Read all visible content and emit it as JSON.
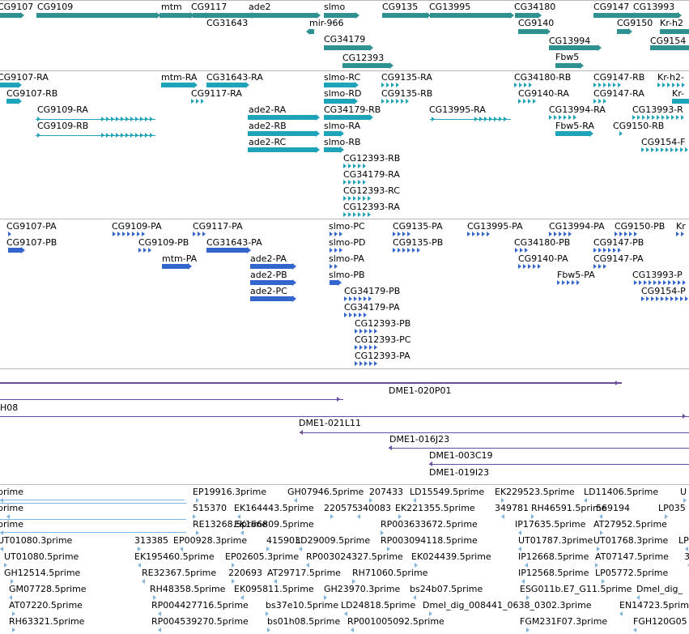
{
  "colors": {
    "gene": "#2f9090",
    "transcript": "#1fa3b8",
    "protein": "#3366cc",
    "clone": "#6a4a9c",
    "est": "#7fb5de",
    "divider": "#b8b8b8"
  },
  "tracks": [
    {
      "name": "genes",
      "features": [
        {
          "label": "CG9107",
          "strand": "+"
        },
        {
          "label": "CG9109",
          "strand": "+"
        },
        {
          "label": "mtm",
          "strand": "+"
        },
        {
          "label": "CG9117",
          "strand": "+"
        },
        {
          "label": "CG31643",
          "strand": "+"
        },
        {
          "label": "ade2",
          "strand": "+"
        },
        {
          "label": "slmo",
          "strand": "+"
        },
        {
          "label": "mir-966",
          "strand": "-"
        },
        {
          "label": "CG34179",
          "strand": "+"
        },
        {
          "label": "CG12393",
          "strand": "+"
        },
        {
          "label": "CG9135",
          "strand": "+"
        },
        {
          "label": "CG13995",
          "strand": "+"
        },
        {
          "label": "CG34180",
          "strand": "+"
        },
        {
          "label": "CG9140",
          "strand": "+"
        },
        {
          "label": "CG13994",
          "strand": "+"
        },
        {
          "label": "Fbw5",
          "strand": "+"
        },
        {
          "label": "CG9147",
          "strand": "+"
        },
        {
          "label": "CG9150",
          "strand": "+"
        },
        {
          "label": "CG13993",
          "strand": "+"
        },
        {
          "label": "Kr-h2",
          "strand": "+"
        },
        {
          "label": "CG9154",
          "strand": "+"
        }
      ]
    },
    {
      "name": "transcripts",
      "features": [
        {
          "label": "CG9107-RA"
        },
        {
          "label": "CG9107-RB"
        },
        {
          "label": "CG9109-RA"
        },
        {
          "label": "CG9109-RB"
        },
        {
          "label": "mtm-RA"
        },
        {
          "label": "CG31643-RA"
        },
        {
          "label": "CG9117-RA"
        },
        {
          "label": "ade2-RA"
        },
        {
          "label": "ade2-RB"
        },
        {
          "label": "ade2-RC"
        },
        {
          "label": "slmo-RC"
        },
        {
          "label": "slmo-RD"
        },
        {
          "label": "CG34179-RB"
        },
        {
          "label": "slmo-RA"
        },
        {
          "label": "slmo-RB"
        },
        {
          "label": "CG12393-RB"
        },
        {
          "label": "CG34179-RA"
        },
        {
          "label": "CG12393-RC"
        },
        {
          "label": "CG12393-RA"
        },
        {
          "label": "CG9135-RA"
        },
        {
          "label": "CG9135-RB"
        },
        {
          "label": "CG13995-RA"
        },
        {
          "label": "CG34180-RB"
        },
        {
          "label": "CG9140-RA"
        },
        {
          "label": "CG13994-RA"
        },
        {
          "label": "Fbw5-RA"
        },
        {
          "label": "CG9147-RB"
        },
        {
          "label": "CG9147-RA"
        },
        {
          "label": "CG9150-RB"
        },
        {
          "label": "Kr-h2-"
        },
        {
          "label": "Kr-"
        },
        {
          "label": "CG13993-R"
        },
        {
          "label": "CG9154-F"
        }
      ]
    },
    {
      "name": "proteins",
      "features": [
        {
          "label": "CG9107-PA"
        },
        {
          "label": "CG9107-PB"
        },
        {
          "label": "CG9109-PA"
        },
        {
          "label": "CG9109-PB"
        },
        {
          "label": "CG9117-PA"
        },
        {
          "label": "CG31643-PA"
        },
        {
          "label": "mtm-PA"
        },
        {
          "label": "ade2-PA"
        },
        {
          "label": "ade2-PB"
        },
        {
          "label": "ade2-PC"
        },
        {
          "label": "slmo-PC"
        },
        {
          "label": "slmo-PD"
        },
        {
          "label": "slmo-PA"
        },
        {
          "label": "slmo-PB"
        },
        {
          "label": "CG34179-PB"
        },
        {
          "label": "CG34179-PA"
        },
        {
          "label": "CG12393-PB"
        },
        {
          "label": "CG12393-PC"
        },
        {
          "label": "CG12393-PA"
        },
        {
          "label": "CG9135-PA"
        },
        {
          "label": "CG9135-PB"
        },
        {
          "label": "CG13995-PA"
        },
        {
          "label": "CG13994-PA"
        },
        {
          "label": "CG9150-PB"
        },
        {
          "label": "CG34180-PB"
        },
        {
          "label": "CG9147-PB"
        },
        {
          "label": "CG9140-PA"
        },
        {
          "label": "CG9147-PA"
        },
        {
          "label": "Fbw5-PA"
        },
        {
          "label": "CG13993-P"
        },
        {
          "label": "CG9154-P"
        },
        {
          "label": "Kr"
        }
      ]
    },
    {
      "name": "clones",
      "features": [
        {
          "label": "DME1-020P01"
        },
        {
          "label": "H08"
        },
        {
          "label": "DME1-021L11"
        },
        {
          "label": "DME1-016J23"
        },
        {
          "label": "DME1-003C19"
        },
        {
          "label": "DME1-019I23"
        }
      ]
    },
    {
      "name": "ests",
      "features": [
        {
          "label": "prime"
        },
        {
          "label": "EP19916.3prime"
        },
        {
          "label": "GH07946.5prime"
        },
        {
          "label": "207433"
        },
        {
          "label": "LD15549.5prime"
        },
        {
          "label": "EK229523.5prime"
        },
        {
          "label": "LD11406.5prime"
        },
        {
          "label": "U"
        },
        {
          "label": "prime"
        },
        {
          "label": "515370"
        },
        {
          "label": "EK164443.5prime"
        },
        {
          "label": "220575"
        },
        {
          "label": "340083"
        },
        {
          "label": "EK221355.5prime"
        },
        {
          "label": "349781"
        },
        {
          "label": "RH46591.5prime"
        },
        {
          "label": "569194"
        },
        {
          "label": "LP035"
        },
        {
          "label": "prime"
        },
        {
          "label": "RE13268.5prime"
        },
        {
          "label": "EK166809.5prime"
        },
        {
          "label": "RP003633672.5prime"
        },
        {
          "label": "IP17635.5prime"
        },
        {
          "label": "AT27952.5prime"
        },
        {
          "label": "UT01080.3prime"
        },
        {
          "label": "313385"
        },
        {
          "label": "EP00928.3prime"
        },
        {
          "label": "415903"
        },
        {
          "label": "LD29009.5prime"
        },
        {
          "label": "RP003094118.5prime"
        },
        {
          "label": "UT01787.3prime"
        },
        {
          "label": "UT01768.3prime"
        },
        {
          "label": "LP"
        },
        {
          "label": "UT01080.5prime"
        },
        {
          "label": "EK195460.5prime"
        },
        {
          "label": "EP02605.3prime"
        },
        {
          "label": "RP003024327.5prime"
        },
        {
          "label": "EK024439.5prime"
        },
        {
          "label": "IP12668.5prime"
        },
        {
          "label": "AT07147.5prime"
        },
        {
          "label": "3"
        },
        {
          "label": "GH12514.5prime"
        },
        {
          "label": "RE32367.5prime"
        },
        {
          "label": "220693"
        },
        {
          "label": "AT29717.5prime"
        },
        {
          "label": "RH71060.5prime"
        },
        {
          "label": "IP12568.5prime"
        },
        {
          "label": "LP05772.5prime"
        },
        {
          "label": "GM07728.5prime"
        },
        {
          "label": "RH48358.5prime"
        },
        {
          "label": "EK095811.5prime"
        },
        {
          "label": "GH23970.3prime"
        },
        {
          "label": "bs24b07.5prime"
        },
        {
          "label": "ESG011b.E7_G11.5prime"
        },
        {
          "label": "Dmel_dig_"
        },
        {
          "label": "AT07220.5prime"
        },
        {
          "label": "RP004427716.5prime"
        },
        {
          "label": "bs37e10.5prime"
        },
        {
          "label": "LD24818.5prime"
        },
        {
          "label": "Dmel_dig_008441_0638_0302.3prime"
        },
        {
          "label": "EN14723.5prime"
        },
        {
          "label": "RH63321.5prime"
        },
        {
          "label": "RP004539270.5prime"
        },
        {
          "label": "bs01h08.5prime"
        },
        {
          "label": "RP001005092.5prime"
        },
        {
          "label": "FGM231F07.3prime"
        },
        {
          "label": "FGH120G05"
        }
      ]
    }
  ]
}
